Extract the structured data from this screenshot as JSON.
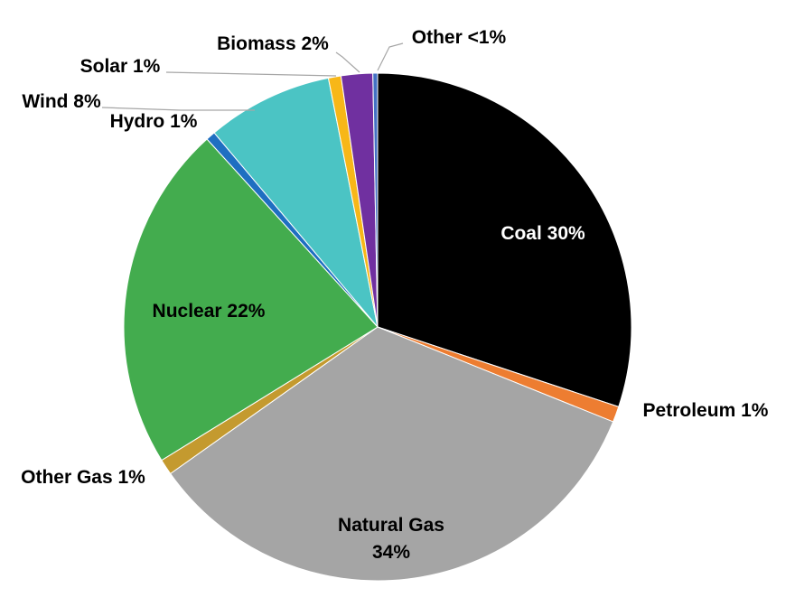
{
  "chart_data": {
    "type": "pie",
    "start": "12 o'clock",
    "direction": "clockwise",
    "slices": [
      {
        "name": "Coal",
        "pct_label": "30%",
        "value": 30.0,
        "color": "#000000",
        "label_color": "#ffffff",
        "label_position": "inside"
      },
      {
        "name": "Petroleum",
        "pct_label": "1%",
        "value": 1.0,
        "color": "#ED7D31",
        "label_color": "#000000",
        "label_position": "outside"
      },
      {
        "name": "Natural Gas",
        "pct_label": "34%",
        "value": 34.0,
        "color": "#A5A5A5",
        "label_color": "#000000",
        "label_position": "inside"
      },
      {
        "name": "Other Gas",
        "pct_label": "1%",
        "value": 1.0,
        "color": "#C49A2F",
        "label_color": "#000000",
        "label_position": "outside"
      },
      {
        "name": "Nuclear",
        "pct_label": "22%",
        "value": 22.0,
        "color": "#43AC4E",
        "label_color": "#000000",
        "label_position": "inside"
      },
      {
        "name": "Hydro",
        "pct_label": "1%",
        "value": 0.6,
        "color": "#1F6FC1",
        "label_color": "#000000",
        "label_position": "outside"
      },
      {
        "name": "Wind",
        "pct_label": "8%",
        "value": 8.0,
        "color": "#4BC4C4",
        "label_color": "#000000",
        "label_position": "outside-leader"
      },
      {
        "name": "Solar",
        "pct_label": "1%",
        "value": 0.8,
        "color": "#F7B718",
        "label_color": "#000000",
        "label_position": "outside-leader"
      },
      {
        "name": "Biomass",
        "pct_label": "2%",
        "value": 2.0,
        "color": "#7030A0",
        "label_color": "#000000",
        "label_position": "outside-leader"
      },
      {
        "name": "Other",
        "pct_label": "<1%",
        "value": 0.3,
        "color": "#4472C4",
        "label_color": "#000000",
        "label_position": "outside-leader"
      }
    ],
    "title": "",
    "legend": "none"
  }
}
